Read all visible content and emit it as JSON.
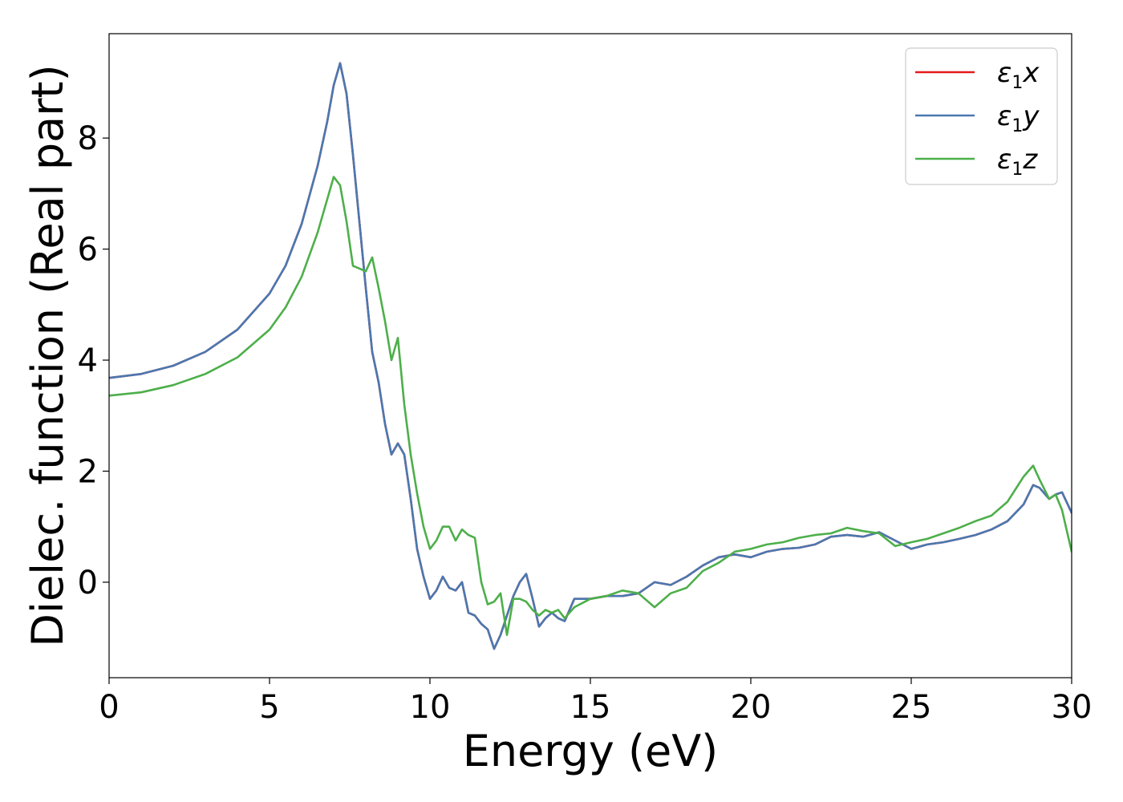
{
  "chart_data": {
    "type": "line",
    "title": "",
    "xlabel": "Energy (eV)",
    "ylabel": "Dielec. function (Real part)",
    "xlim": [
      0,
      30
    ],
    "ylim": [
      -1.72,
      9.88
    ],
    "xticks": [
      0,
      5,
      10,
      15,
      20,
      25,
      30
    ],
    "yticks": [
      0,
      2,
      4,
      6,
      8
    ],
    "grid": false,
    "legend": "top-right",
    "series": [
      {
        "name": "ε1x",
        "legend_base": "ε",
        "legend_sub": "1",
        "legend_suffix": "x",
        "color": "#e41a1c",
        "x": [
          0,
          1,
          2,
          3,
          4,
          5,
          5.5,
          6,
          6.5,
          6.8,
          7.0,
          7.2,
          7.4,
          7.6,
          7.8,
          8.0,
          8.2,
          8.4,
          8.6,
          8.8,
          9.0,
          9.2,
          9.4,
          9.6,
          9.8,
          10.0,
          10.2,
          10.4,
          10.6,
          10.8,
          11.0,
          11.2,
          11.4,
          11.6,
          11.8,
          12.0,
          12.2,
          12.4,
          12.6,
          12.8,
          13.0,
          13.2,
          13.4,
          13.6,
          13.8,
          14.0,
          14.2,
          14.5,
          15.0,
          15.5,
          16.0,
          16.5,
          17.0,
          17.5,
          18.0,
          18.5,
          19.0,
          19.5,
          20.0,
          20.5,
          21.0,
          21.5,
          22.0,
          22.5,
          23.0,
          23.5,
          24.0,
          24.5,
          25.0,
          25.5,
          26.0,
          26.5,
          27.0,
          27.5,
          28.0,
          28.5,
          28.8,
          29.0,
          29.3,
          29.5,
          29.7,
          30.0
        ],
        "y": [
          3.68,
          3.75,
          3.9,
          4.15,
          4.55,
          5.2,
          5.7,
          6.45,
          7.5,
          8.3,
          8.95,
          9.35,
          8.8,
          7.7,
          6.5,
          5.3,
          4.15,
          3.6,
          2.85,
          2.3,
          2.5,
          2.3,
          1.5,
          0.6,
          0.1,
          -0.3,
          -0.15,
          0.1,
          -0.1,
          -0.15,
          0.0,
          -0.55,
          -0.6,
          -0.75,
          -0.85,
          -1.2,
          -0.95,
          -0.6,
          -0.25,
          0.0,
          0.15,
          -0.3,
          -0.8,
          -0.65,
          -0.55,
          -0.65,
          -0.7,
          -0.3,
          -0.3,
          -0.25,
          -0.25,
          -0.2,
          0.0,
          -0.05,
          0.1,
          0.3,
          0.45,
          0.5,
          0.45,
          0.55,
          0.6,
          0.62,
          0.68,
          0.82,
          0.85,
          0.82,
          0.9,
          0.75,
          0.6,
          0.68,
          0.72,
          0.78,
          0.85,
          0.95,
          1.1,
          1.4,
          1.75,
          1.7,
          1.5,
          1.58,
          1.62,
          1.25
        ]
      },
      {
        "name": "ε1y",
        "legend_base": "ε",
        "legend_sub": "1",
        "legend_suffix": "y",
        "color": "#4a78b0",
        "x": [
          0,
          1,
          2,
          3,
          4,
          5,
          5.5,
          6,
          6.5,
          6.8,
          7.0,
          7.2,
          7.4,
          7.6,
          7.8,
          8.0,
          8.2,
          8.4,
          8.6,
          8.8,
          9.0,
          9.2,
          9.4,
          9.6,
          9.8,
          10.0,
          10.2,
          10.4,
          10.6,
          10.8,
          11.0,
          11.2,
          11.4,
          11.6,
          11.8,
          12.0,
          12.2,
          12.4,
          12.6,
          12.8,
          13.0,
          13.2,
          13.4,
          13.6,
          13.8,
          14.0,
          14.2,
          14.5,
          15.0,
          15.5,
          16.0,
          16.5,
          17.0,
          17.5,
          18.0,
          18.5,
          19.0,
          19.5,
          20.0,
          20.5,
          21.0,
          21.5,
          22.0,
          22.5,
          23.0,
          23.5,
          24.0,
          24.5,
          25.0,
          25.5,
          26.0,
          26.5,
          27.0,
          27.5,
          28.0,
          28.5,
          28.8,
          29.0,
          29.3,
          29.5,
          29.7,
          30.0
        ],
        "y": [
          3.68,
          3.75,
          3.9,
          4.15,
          4.55,
          5.2,
          5.7,
          6.45,
          7.5,
          8.3,
          8.95,
          9.35,
          8.8,
          7.7,
          6.5,
          5.3,
          4.15,
          3.6,
          2.85,
          2.3,
          2.5,
          2.3,
          1.5,
          0.6,
          0.1,
          -0.3,
          -0.15,
          0.1,
          -0.1,
          -0.15,
          0.0,
          -0.55,
          -0.6,
          -0.75,
          -0.85,
          -1.2,
          -0.95,
          -0.6,
          -0.25,
          0.0,
          0.15,
          -0.3,
          -0.8,
          -0.65,
          -0.55,
          -0.65,
          -0.7,
          -0.3,
          -0.3,
          -0.25,
          -0.25,
          -0.2,
          0.0,
          -0.05,
          0.1,
          0.3,
          0.45,
          0.5,
          0.45,
          0.55,
          0.6,
          0.62,
          0.68,
          0.82,
          0.85,
          0.82,
          0.9,
          0.75,
          0.6,
          0.68,
          0.72,
          0.78,
          0.85,
          0.95,
          1.1,
          1.4,
          1.75,
          1.7,
          1.5,
          1.58,
          1.62,
          1.25
        ]
      },
      {
        "name": "ε1z",
        "legend_base": "ε",
        "legend_sub": "1",
        "legend_suffix": "z",
        "color": "#4daf4a",
        "x": [
          0,
          1,
          2,
          3,
          4,
          5,
          5.5,
          6,
          6.5,
          6.8,
          7.0,
          7.2,
          7.4,
          7.6,
          7.8,
          8.0,
          8.2,
          8.4,
          8.6,
          8.8,
          9.0,
          9.2,
          9.4,
          9.6,
          9.8,
          10.0,
          10.2,
          10.4,
          10.6,
          10.8,
          11.0,
          11.2,
          11.4,
          11.6,
          11.8,
          12.0,
          12.2,
          12.4,
          12.6,
          12.8,
          13.0,
          13.2,
          13.4,
          13.6,
          13.8,
          14.0,
          14.2,
          14.5,
          15.0,
          15.5,
          16.0,
          16.5,
          17.0,
          17.5,
          18.0,
          18.5,
          19.0,
          19.5,
          20.0,
          20.5,
          21.0,
          21.5,
          22.0,
          22.5,
          23.0,
          23.5,
          24.0,
          24.5,
          25.0,
          25.5,
          26.0,
          26.5,
          27.0,
          27.5,
          28.0,
          28.5,
          28.8,
          29.0,
          29.3,
          29.5,
          29.7,
          30.0
        ],
        "y": [
          3.36,
          3.42,
          3.55,
          3.75,
          4.05,
          4.55,
          4.95,
          5.5,
          6.3,
          6.9,
          7.3,
          7.15,
          6.5,
          5.7,
          5.65,
          5.6,
          5.85,
          5.3,
          4.7,
          4.0,
          4.4,
          3.2,
          2.3,
          1.6,
          1.0,
          0.6,
          0.75,
          1.0,
          1.0,
          0.75,
          0.95,
          0.85,
          0.8,
          0.0,
          -0.4,
          -0.35,
          -0.2,
          -0.95,
          -0.3,
          -0.3,
          -0.35,
          -0.5,
          -0.6,
          -0.5,
          -0.55,
          -0.5,
          -0.65,
          -0.45,
          -0.3,
          -0.25,
          -0.15,
          -0.2,
          -0.45,
          -0.2,
          -0.1,
          0.2,
          0.35,
          0.55,
          0.6,
          0.68,
          0.72,
          0.8,
          0.85,
          0.88,
          0.98,
          0.92,
          0.88,
          0.65,
          0.72,
          0.78,
          0.88,
          0.98,
          1.1,
          1.2,
          1.45,
          1.9,
          2.1,
          1.85,
          1.5,
          1.58,
          1.3,
          0.55
        ]
      }
    ]
  }
}
